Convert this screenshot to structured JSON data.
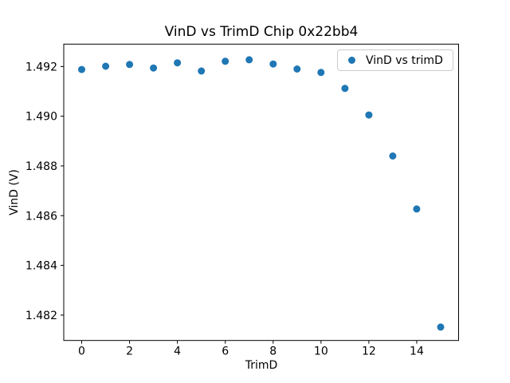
{
  "figure": {
    "background": "#ffffff",
    "text_color": "#000000"
  },
  "chart_data": {
    "type": "scatter",
    "title": "VinD vs TrimD Chip 0x22bb4",
    "xlabel": "TrimD",
    "ylabel": "VinD (V)",
    "grid": false,
    "marker": "circle",
    "marker_color": "#1f77b4",
    "xlim": [
      -0.75,
      15.75
    ],
    "ylim": [
      1.48098,
      1.4929
    ],
    "xticks": [
      0,
      2,
      4,
      6,
      8,
      10,
      12,
      14
    ],
    "xtick_labels": [
      "0",
      "2",
      "4",
      "6",
      "8",
      "10",
      "12",
      "14"
    ],
    "yticks": [
      1.482,
      1.484,
      1.486,
      1.488,
      1.49,
      1.492
    ],
    "ytick_labels": [
      "1.482",
      "1.484",
      "1.486",
      "1.488",
      "1.490",
      "1.492"
    ],
    "legend": {
      "position": "upper right",
      "entries": [
        {
          "label": "VinD vs trimD",
          "marker_color": "#1f77b4"
        }
      ]
    },
    "series": [
      {
        "name": "VinD vs trimD",
        "color": "#1f77b4",
        "x": [
          0,
          1,
          2,
          3,
          4,
          5,
          6,
          7,
          8,
          9,
          10,
          11,
          12,
          13,
          14,
          15
        ],
        "y": [
          1.49188,
          1.49201,
          1.49208,
          1.49194,
          1.49215,
          1.49182,
          1.49221,
          1.49227,
          1.4921,
          1.4919,
          1.49176,
          1.49112,
          1.49005,
          1.4884,
          1.48627,
          1.48152
        ]
      }
    ]
  }
}
